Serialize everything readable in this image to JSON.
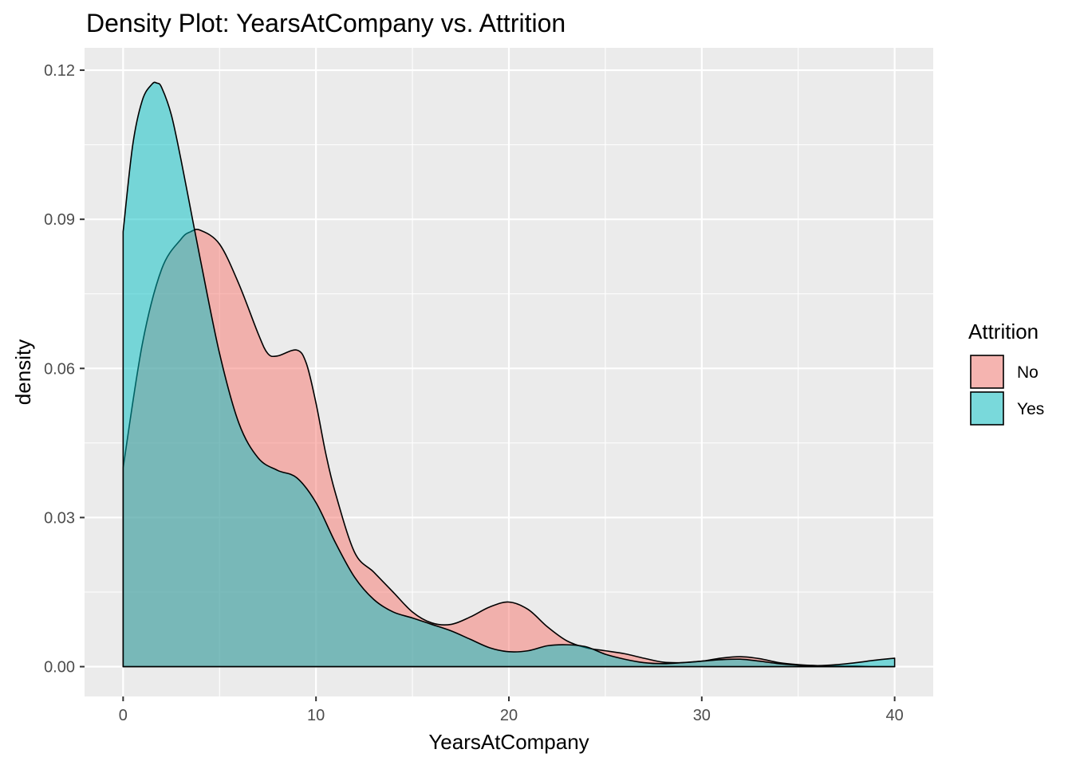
{
  "chart_data": {
    "type": "area",
    "title": "Density Plot: YearsAtCompany vs. Attrition",
    "xlabel": "YearsAtCompany",
    "ylabel": "density",
    "xlim": [
      -2,
      42
    ],
    "ylim": [
      -0.006,
      0.1245
    ],
    "x_ticks": [
      0,
      10,
      20,
      30,
      40
    ],
    "x_tick_labels": [
      "0",
      "10",
      "20",
      "30",
      "40"
    ],
    "y_ticks": [
      0.0,
      0.03,
      0.06,
      0.09,
      0.12
    ],
    "y_tick_labels": [
      "0.00",
      "0.03",
      "0.06",
      "0.09",
      "0.12"
    ],
    "grid": true,
    "legend": {
      "title": "Attrition",
      "position": "right",
      "entries": [
        "No",
        "Yes"
      ]
    },
    "series": [
      {
        "name": "No",
        "color": "#F8766D",
        "x": [
          0,
          1,
          2,
          3,
          3.5,
          4,
          5,
          6,
          7,
          7.5,
          8,
          9,
          9.5,
          10,
          10.5,
          11,
          12,
          13,
          14,
          15,
          16,
          17,
          18,
          19,
          20,
          21,
          22,
          23,
          24,
          25,
          26,
          27,
          28,
          29,
          30,
          31,
          32,
          33,
          34,
          35,
          36,
          37,
          38,
          39,
          40
        ],
        "y": [
          0.04,
          0.065,
          0.08,
          0.086,
          0.0875,
          0.0878,
          0.085,
          0.077,
          0.067,
          0.063,
          0.0625,
          0.0637,
          0.061,
          0.053,
          0.043,
          0.035,
          0.023,
          0.019,
          0.015,
          0.011,
          0.0088,
          0.0085,
          0.01,
          0.012,
          0.013,
          0.0115,
          0.008,
          0.0052,
          0.0038,
          0.0032,
          0.0026,
          0.0017,
          0.0009,
          0.0008,
          0.0011,
          0.0017,
          0.002,
          0.0016,
          0.0008,
          0.0004,
          0.0002,
          0.0001,
          0.0001,
          0.0,
          0.0
        ]
      },
      {
        "name": "Yes",
        "color": "#00BFC4",
        "x": [
          0,
          0.5,
          1,
          1.5,
          1.75,
          2,
          2.5,
          3,
          3.5,
          4,
          5,
          6,
          7,
          8,
          9,
          10,
          11,
          12,
          13,
          14,
          15,
          16,
          17,
          18,
          19,
          20,
          21,
          22,
          23,
          24,
          25,
          26,
          27,
          28,
          29,
          30,
          31,
          32,
          33,
          34,
          35,
          36,
          37,
          38,
          39,
          40
        ],
        "y": [
          0.0875,
          0.105,
          0.114,
          0.1172,
          0.1174,
          0.1165,
          0.111,
          0.102,
          0.092,
          0.082,
          0.063,
          0.049,
          0.042,
          0.0395,
          0.038,
          0.033,
          0.025,
          0.018,
          0.0135,
          0.011,
          0.0098,
          0.0085,
          0.0072,
          0.0055,
          0.0038,
          0.003,
          0.0032,
          0.0042,
          0.0044,
          0.004,
          0.0025,
          0.0015,
          0.0008,
          0.0006,
          0.0008,
          0.0011,
          0.0014,
          0.0015,
          0.0011,
          0.0006,
          0.0003,
          0.0002,
          0.0004,
          0.0008,
          0.0013,
          0.0017
        ]
      }
    ]
  }
}
